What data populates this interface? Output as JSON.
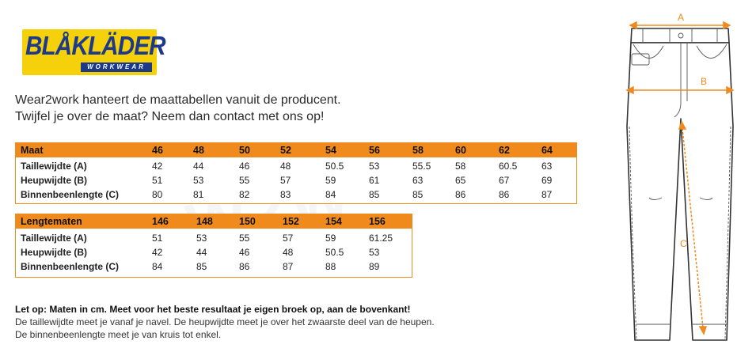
{
  "logo": {
    "brand": "BLÅKLÄDER",
    "sub": "WORKWEAR"
  },
  "intro": [
    "Wear2work hanteert de maattabellen vanuit de producent.",
    "Twijfel je over de maat? Neem dan contact met ons op!"
  ],
  "size_table": {
    "header": [
      "Maat",
      "46",
      "48",
      "50",
      "52",
      "54",
      "56",
      "58",
      "60",
      "62",
      "64"
    ],
    "rows": [
      {
        "label": "Taillewijdte (A)",
        "values": [
          "42",
          "44",
          "46",
          "48",
          "50.5",
          "53",
          "55.5",
          "58",
          "60.5",
          "63"
        ]
      },
      {
        "label": "Heupwijdte (B)",
        "values": [
          "51",
          "53",
          "55",
          "57",
          "59",
          "61",
          "63",
          "65",
          "67",
          "69"
        ]
      },
      {
        "label": "Binnenbeenlengte (C)",
        "values": [
          "80",
          "81",
          "82",
          "83",
          "84",
          "85",
          "85",
          "86",
          "86",
          "87"
        ]
      }
    ]
  },
  "length_table": {
    "header": [
      "Lengtematen",
      "146",
      "148",
      "150",
      "152",
      "154",
      "156"
    ],
    "rows": [
      {
        "label": "Taillewijdte (A)",
        "values": [
          "51",
          "53",
          "55",
          "57",
          "59",
          "61.25"
        ]
      },
      {
        "label": "Heupwijdte (B)",
        "values": [
          "42",
          "44",
          "46",
          "48",
          "50.5",
          "53"
        ]
      },
      {
        "label": "Binnenbeenlengte (C)",
        "values": [
          "84",
          "85",
          "86",
          "87",
          "88",
          "89"
        ]
      }
    ]
  },
  "note": {
    "bold": "Let op: Maten in cm. Meet voor het beste resultaat je eigen broek op, aan de bovenkant!",
    "lines": [
      "De taillewijdte meet je vanaf je navel. De heupwijdte meet je over het zwaarste deel van de heupen.",
      "De binnenbeenlengte meet je van kruis tot enkel."
    ]
  },
  "diagram": {
    "label_a": "A",
    "label_b": "B",
    "label_c": "C",
    "accent": "#f08a1c"
  }
}
